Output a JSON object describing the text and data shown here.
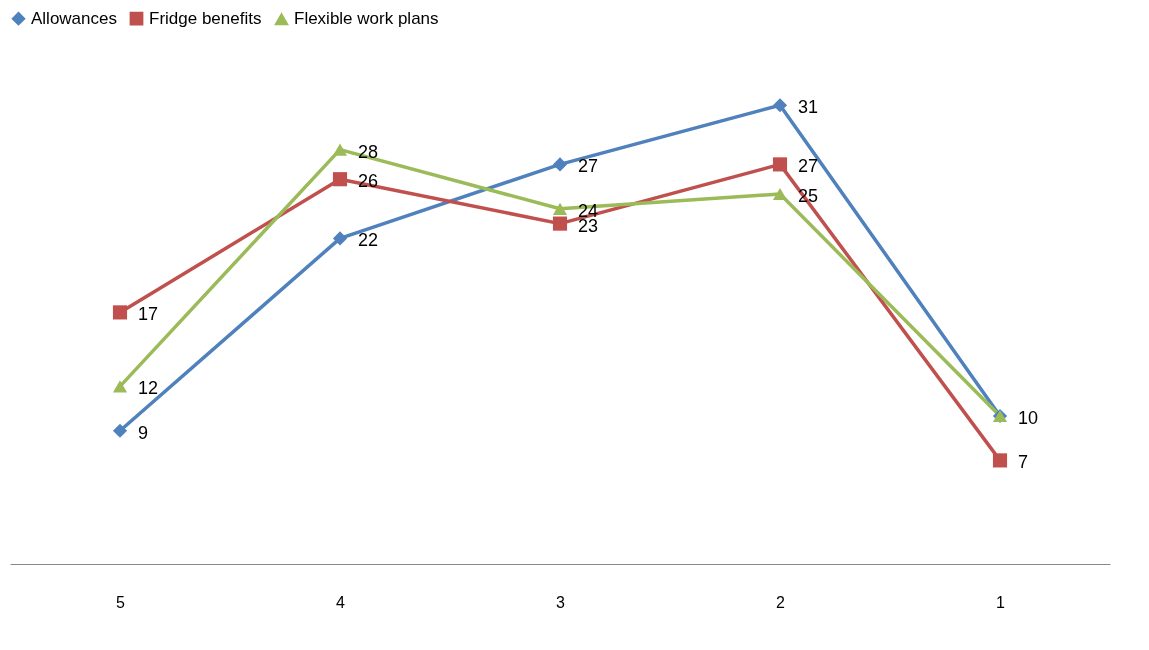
{
  "chart_data": {
    "type": "line",
    "categories": [
      "5",
      "4",
      "3",
      "2",
      "1"
    ],
    "series": [
      {
        "name": "Allowances",
        "color": "#4f81bd",
        "marker": "diamond",
        "values": [
          9,
          22,
          27,
          31,
          10
        ],
        "value_labels": [
          "9",
          "22",
          "27",
          "31",
          "10"
        ]
      },
      {
        "name": "Fridge benefits",
        "color": "#c0504d",
        "marker": "square",
        "values": [
          17,
          26,
          23,
          27,
          7
        ],
        "value_labels": [
          "17",
          "26",
          "23",
          "27",
          "7"
        ]
      },
      {
        "name": "Flexible work plans",
        "color": "#9bbb59",
        "marker": "triangle",
        "values": [
          12,
          28,
          24,
          25,
          10
        ],
        "value_labels": [
          "12",
          "28",
          "24",
          "25",
          null
        ]
      }
    ],
    "legend": "top",
    "grid": false,
    "tick_labels": "x",
    "line_style": "solid"
  }
}
